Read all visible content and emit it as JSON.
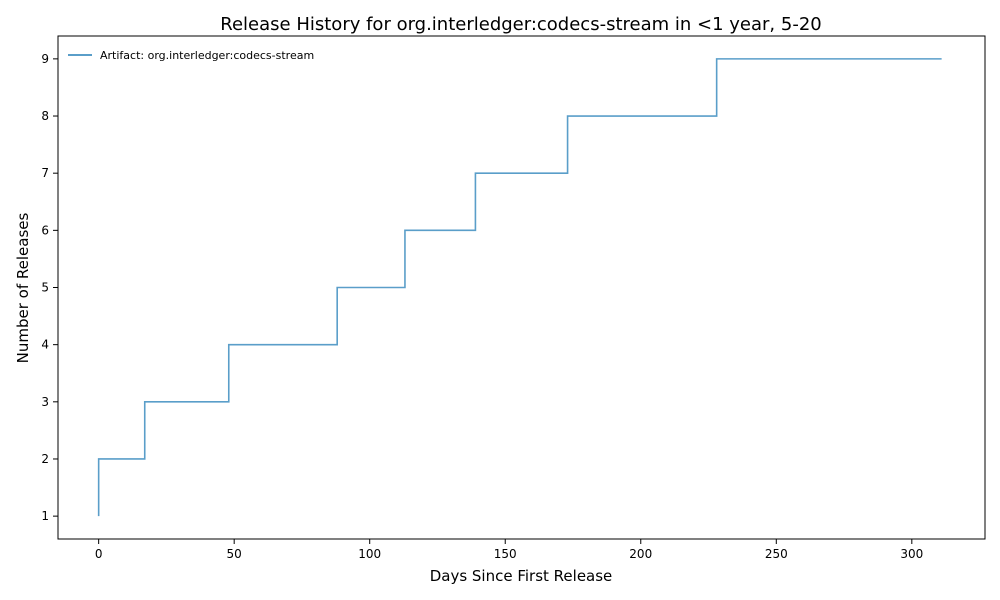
{
  "chart_data": {
    "type": "line",
    "drawstyle": "steps-post",
    "title": "Release History for org.interledger:codecs-stream in <1 year, 5-20",
    "xlabel": "Days Since First Release",
    "ylabel": "Number of Releases",
    "xlim": [
      -15,
      327
    ],
    "ylim": [
      0.6,
      9.4
    ],
    "xticks": [
      0,
      50,
      100,
      150,
      200,
      250,
      300
    ],
    "yticks": [
      1,
      2,
      3,
      4,
      5,
      6,
      7,
      8,
      9
    ],
    "grid": false,
    "legend_position": "top-left",
    "series": [
      {
        "name": "Artifact: org.interledger:codecs-stream",
        "color": "#5a9ec9",
        "x": [
          0,
          0,
          17,
          48,
          88,
          113,
          139,
          173,
          228,
          311
        ],
        "y": [
          1,
          2,
          3,
          4,
          5,
          6,
          7,
          8,
          9,
          9
        ]
      }
    ]
  }
}
